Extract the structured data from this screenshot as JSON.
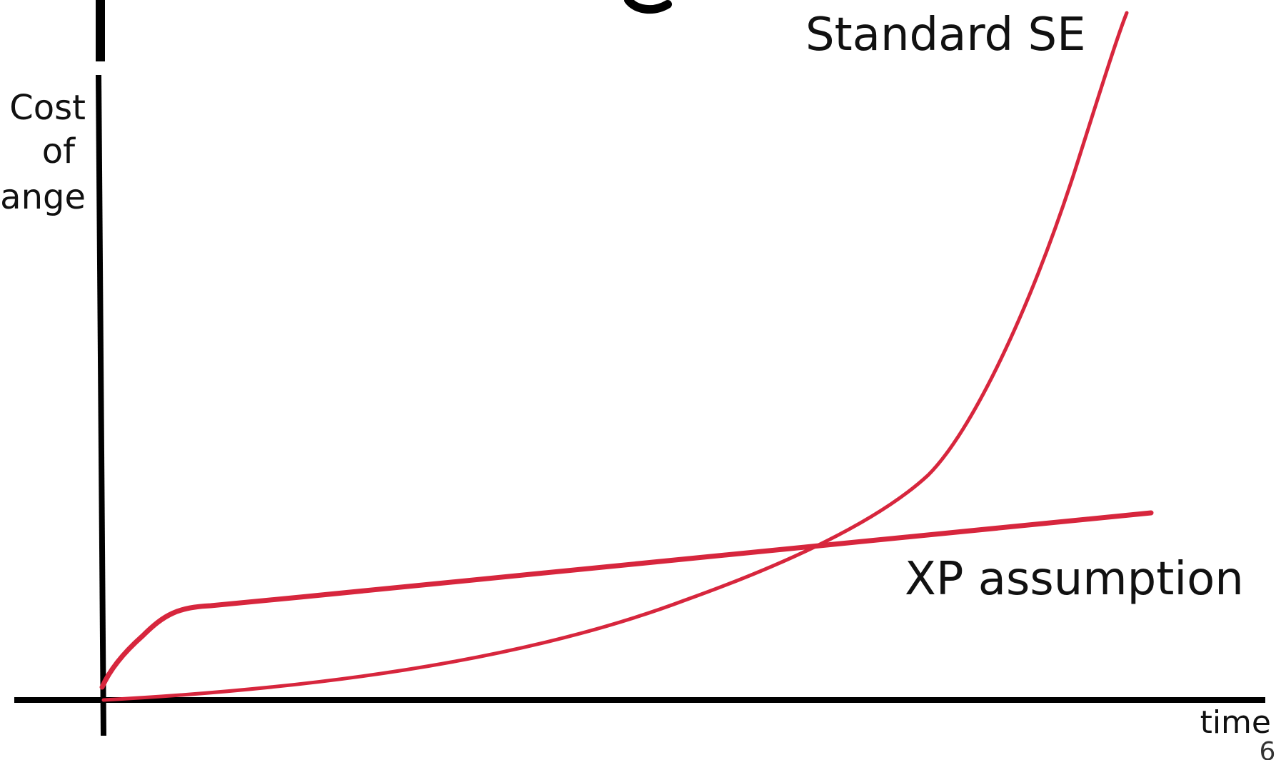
{
  "diagram": {
    "y_axis_label_lines": [
      "Cost",
      "of",
      "hange"
    ],
    "x_axis_label": "time",
    "page_number": "6",
    "colors": {
      "axis": "#000000",
      "curve": "#d7263d",
      "text": "#111111"
    },
    "curves": [
      {
        "label": "Standard SE"
      },
      {
        "label": "XP assumption"
      }
    ]
  }
}
